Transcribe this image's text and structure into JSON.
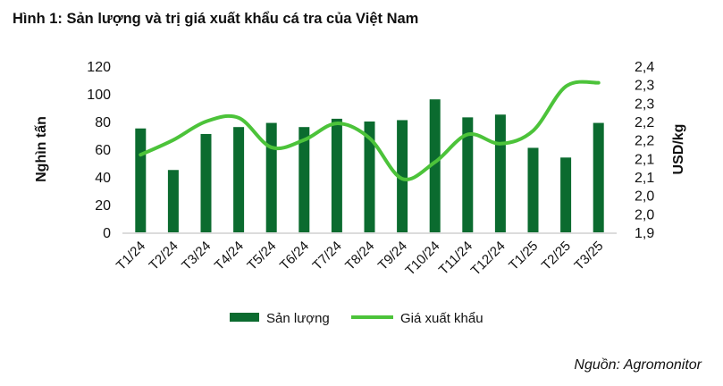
{
  "title": "Hình 1: Sản lượng và trị giá xuất khẩu cá tra của Việt Nam",
  "source": "Nguồn: Agromonitor",
  "colors": {
    "bar": "#0b6b2f",
    "line": "#4cc33a",
    "axis": "#d0d0d0"
  },
  "chart_data": {
    "type": "bar+line",
    "title": "Hình 1: Sản lượng và trị giá xuất khẩu cá tra của Việt Nam",
    "categories": [
      "T1/24",
      "T2/24",
      "T3/24",
      "T4/24",
      "T5/24",
      "T6/24",
      "T7/24",
      "T8/24",
      "T9/24",
      "T10/24",
      "T11/24",
      "T12/24",
      "T1/25",
      "T2/25",
      "T3/25"
    ],
    "series": [
      {
        "name": "Sản lượng",
        "type": "bar",
        "axis": "left",
        "values": [
          75,
          45,
          71,
          76,
          79,
          76,
          82,
          80,
          81,
          96,
          83,
          85,
          61,
          54,
          79
        ]
      },
      {
        "name": "Giá xuất khẩu",
        "type": "line",
        "axis": "right",
        "values": [
          2.16,
          2.2,
          2.25,
          2.26,
          2.18,
          2.2,
          2.245,
          2.205,
          2.095,
          2.14,
          2.215,
          2.19,
          2.225,
          2.345,
          2.355
        ]
      }
    ],
    "ylabel": "Nghìn tấn",
    "ylim": [
      0,
      120
    ],
    "yticks": [
      "0",
      "20",
      "40",
      "60",
      "80",
      "100",
      "120"
    ],
    "y2label": "USD/kg",
    "y2lim": [
      1.95,
      2.4
    ],
    "y2ticks": [
      "1,9",
      "2,0",
      "2,0",
      "2,1",
      "2,1",
      "2,2",
      "2,2",
      "2,3",
      "2,3",
      "2,4"
    ],
    "grid": false,
    "legend": "bottom"
  }
}
